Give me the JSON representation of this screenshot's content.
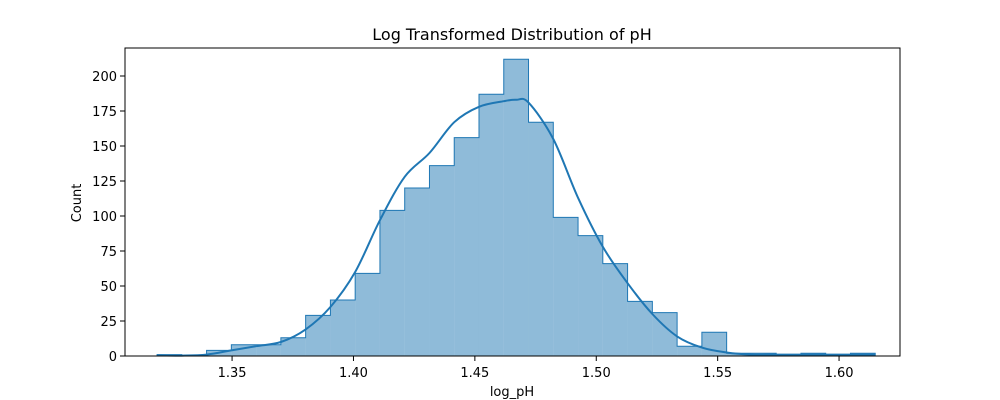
{
  "chart_data": {
    "type": "histogram",
    "title": "Log Transformed Distribution of pH",
    "xlabel": "log_pH",
    "ylabel": "Count",
    "xlim": [
      1.3059,
      1.6251
    ],
    "ylim": [
      0,
      220
    ],
    "xticks": [
      1.35,
      1.4,
      1.45,
      1.5,
      1.55,
      1.6
    ],
    "xtick_labels": [
      "1.35",
      "1.40",
      "1.45",
      "1.50",
      "1.55",
      "1.60"
    ],
    "yticks": [
      0,
      25,
      50,
      75,
      100,
      125,
      150,
      175,
      200
    ],
    "ytick_labels": [
      "0",
      "25",
      "50",
      "75",
      "100",
      "125",
      "150",
      "175",
      "200"
    ],
    "bin_edges": [
      1.3191,
      1.3293,
      1.3395,
      1.3497,
      1.3599,
      1.3701,
      1.3803,
      1.3905,
      1.4007,
      1.4109,
      1.4211,
      1.4313,
      1.4415,
      1.4517,
      1.4619,
      1.4721,
      1.4823,
      1.4925,
      1.5027,
      1.5129,
      1.5231,
      1.5333,
      1.5435,
      1.5537,
      1.5639,
      1.5741,
      1.5843,
      1.5945,
      1.6047,
      1.6149
    ],
    "counts": [
      1,
      0,
      4,
      8,
      8,
      13,
      29,
      40,
      59,
      104,
      120,
      136,
      156,
      187,
      212,
      167,
      99,
      86,
      66,
      39,
      31,
      7,
      17,
      2,
      2,
      1,
      2,
      1,
      2
    ],
    "kde": {
      "x": [
        1.3191,
        1.3293,
        1.3395,
        1.3497,
        1.3599,
        1.3701,
        1.3803,
        1.3905,
        1.4007,
        1.4109,
        1.4211,
        1.4313,
        1.4415,
        1.4517,
        1.4619,
        1.467,
        1.4721,
        1.4823,
        1.4925,
        1.5027,
        1.5129,
        1.5231,
        1.5333,
        1.5435,
        1.5537,
        1.5639,
        1.5741,
        1.5843,
        1.5945,
        1.6047,
        1.6149
      ],
      "y": [
        0.5,
        0.3,
        1,
        4,
        7,
        10,
        19,
        35,
        60,
        97,
        128,
        145,
        167,
        178,
        182,
        183,
        181,
        155,
        113,
        78,
        52,
        30,
        14,
        6,
        2.5,
        1,
        1,
        1,
        1,
        1,
        1
      ]
    },
    "colors": {
      "bar_fill": "#1f77b4",
      "bar_fill_opacity": 0.5,
      "line": "#1f77b4"
    },
    "grid": false,
    "legend": "none"
  }
}
